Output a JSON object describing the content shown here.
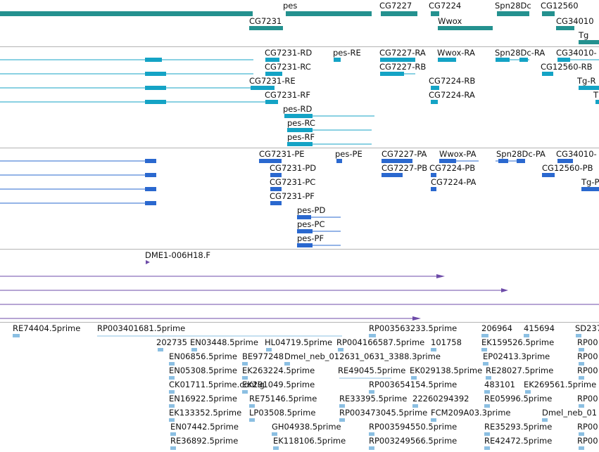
{
  "colors": {
    "gene": "#24918f",
    "transcript": "#14a3c5",
    "cds": "#2a68cf",
    "clone": "#6d4ba8",
    "est": "#8bbfe2",
    "divider": "#b4b4b4"
  },
  "tracks": {
    "genes": {
      "labels": [
        "pes",
        "CG7227",
        "CG7224",
        "Spn28Dc",
        "CG12560",
        "CG7231",
        "Wwox",
        "CG34010",
        "Tg"
      ]
    },
    "transcripts": {
      "labels": [
        "CG7231-RD",
        "pes-RE",
        "CG7227-RA",
        "Wwox-RA",
        "Spn28Dc-RA",
        "CG34010-",
        "CG7231-RC",
        "CG7227-RB",
        "CG12560-RB",
        "CG7231-RE",
        "CG7224-RB",
        "Tg-R",
        "CG7231-RF",
        "CG7224-RA",
        "T",
        "pes-RD",
        "pes-RC",
        "pes-RF"
      ]
    },
    "cds": {
      "labels": [
        "CG7231-PE",
        "pes-PE",
        "CG7227-PA",
        "Wwox-PA",
        "Spn28Dc-PA",
        "CG34010-",
        "CG7231-PD",
        "CG7227-PB",
        "CG7224-PB",
        "CG12560-PB",
        "CG7231-PC",
        "CG7224-PA",
        "Tg-P",
        "CG7231-PF",
        "pes-PD",
        "pes-PC",
        "pes-PF"
      ]
    },
    "clones": {
      "labels": [
        "DME1-006H18.F"
      ]
    },
    "ests": {
      "labels": [
        "RE74404.5prime",
        "RP003401681.5prime",
        "RP003563233.5prime",
        "206964",
        "415694",
        "SD237",
        "202735",
        "EN03448.5prime",
        "HL04719.5prime",
        "RP004166587.5prime",
        "101758",
        "EK159526.5prime",
        "RP00",
        "EN06856.5prime",
        "BE977248",
        "Dmel_neb_012631_0631_3388.3prime",
        "EP02413.3prime",
        "RP00",
        "EN05308.5prime",
        "EK263224.5prime",
        "RE49045.5prime",
        "EK029138.5prime",
        "RE28027.5prime",
        "RP00",
        "CK01711.5prime.contig",
        "EK291049.5prime",
        "RP003654154.5prime",
        "483101",
        "EK269561.5prime",
        "EN16922.5prime",
        "RE75146.5prime",
        "RE33395.5prime",
        "22260294392",
        "RE05996.5prime",
        "RP00",
        "EK133352.5prime",
        "LP03508.5prime",
        "RP003473045.5prime",
        "FCM209A03.3prime",
        "Dmel_neb_01",
        "EN07442.5prime",
        "GH04938.5prime",
        "RP003594550.5prime",
        "RE35293.5prime",
        "RP00",
        "RE36892.5prime",
        "EK118106.5prime",
        "RP003249566.5prime",
        "RE42472.5prime",
        "RP00"
      ]
    }
  }
}
